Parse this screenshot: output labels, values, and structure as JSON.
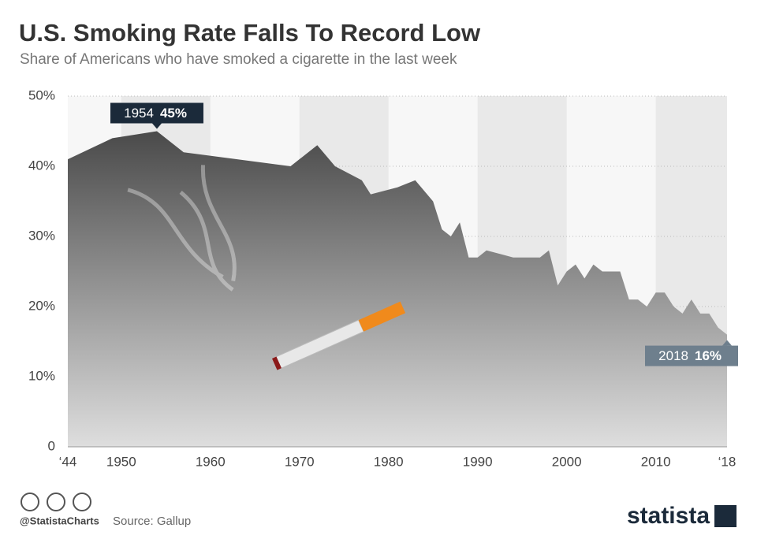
{
  "chart_data": {
    "type": "area",
    "title": "U.S. Smoking Rate Falls To Record Low",
    "subtitle": "Share of Americans who have smoked a cigarette in the last week",
    "x": [
      1944,
      1949,
      1954,
      1957,
      1969,
      1972,
      1974,
      1977,
      1978,
      1981,
      1983,
      1985,
      1986,
      1987,
      1988,
      1989,
      1990,
      1991,
      1994,
      1997,
      1998,
      1999,
      2000,
      2001,
      2002,
      2003,
      2004,
      2005,
      2006,
      2007,
      2008,
      2009,
      2010,
      2011,
      2012,
      2013,
      2014,
      2015,
      2016,
      2017,
      2018
    ],
    "values": [
      41,
      44,
      45,
      42,
      40,
      43,
      40,
      38,
      36,
      37,
      38,
      35,
      31,
      30,
      32,
      27,
      27,
      28,
      27,
      27,
      28,
      23,
      25,
      26,
      24,
      26,
      25,
      25,
      25,
      21,
      21,
      20,
      22,
      22,
      20,
      19,
      21,
      19,
      19,
      17,
      16
    ],
    "color": "#4a4a4a",
    "xlim": [
      1944,
      2018
    ],
    "xticks": [
      {
        "value": 1944,
        "label": "‘44"
      },
      1950,
      1960,
      1970,
      1980,
      1990,
      2000,
      2010,
      {
        "value": 2018,
        "label": "‘18"
      }
    ],
    "ylim": [
      0,
      50
    ],
    "yticks": [
      0,
      {
        "value": 10,
        "label": "10%"
      },
      {
        "value": 20,
        "label": "20%"
      },
      {
        "value": 30,
        "label": "30%"
      },
      {
        "value": 40,
        "label": "40%"
      },
      {
        "value": 50,
        "label": "50%"
      }
    ],
    "grid": true,
    "annotations": [
      {
        "x": 1954,
        "y": 45,
        "text": "1954",
        "value_label": "45%"
      },
      {
        "x": 2018,
        "y": 16,
        "text": "2018",
        "value_label": "16%"
      }
    ],
    "credit": "@StatistaCharts",
    "source": "Source: Gallup",
    "brand": "statista"
  }
}
